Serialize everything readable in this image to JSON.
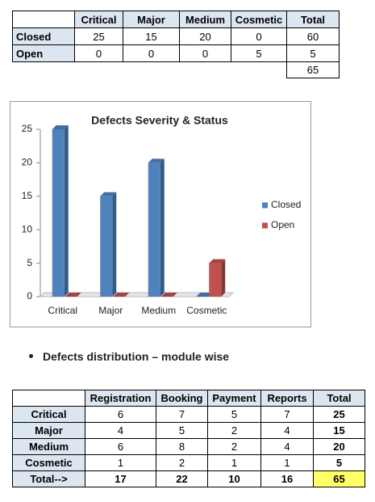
{
  "severity_table": {
    "columns": [
      "Critical",
      "Major",
      "Medium",
      "Cosmetic",
      "Total"
    ],
    "rows": [
      {
        "label": "Closed",
        "cells": [
          25,
          15,
          20,
          0,
          60
        ]
      },
      {
        "label": "Open",
        "cells": [
          0,
          0,
          0,
          5,
          5
        ]
      }
    ],
    "grand_total": 65
  },
  "chart_data": {
    "type": "bar",
    "title": "Defects Severity & Status",
    "categories": [
      "Critical",
      "Major",
      "Medium",
      "Cosmetic"
    ],
    "series": [
      {
        "name": "Closed",
        "color": "#4f81bd",
        "values": [
          25,
          15,
          20,
          0
        ]
      },
      {
        "name": "Open",
        "color": "#c0504d",
        "values": [
          0,
          0,
          0,
          5
        ]
      }
    ],
    "ylim": [
      0,
      25
    ],
    "yticks": [
      0,
      5,
      10,
      15,
      20,
      25
    ],
    "legend": "right"
  },
  "bullet": "Defects distribution – module wise",
  "module_table": {
    "columns": [
      "Registration",
      "Booking",
      "Payment",
      "Reports",
      "Total"
    ],
    "rows": [
      {
        "label": "Critical",
        "cells": [
          6,
          7,
          5,
          7,
          25
        ]
      },
      {
        "label": "Major",
        "cells": [
          4,
          5,
          2,
          4,
          15
        ]
      },
      {
        "label": "Medium",
        "cells": [
          6,
          8,
          2,
          4,
          20
        ]
      },
      {
        "label": "Cosmetic",
        "cells": [
          1,
          2,
          1,
          1,
          5
        ]
      },
      {
        "label": "Total-->",
        "cells": [
          17,
          22,
          10,
          16,
          65
        ]
      }
    ]
  }
}
